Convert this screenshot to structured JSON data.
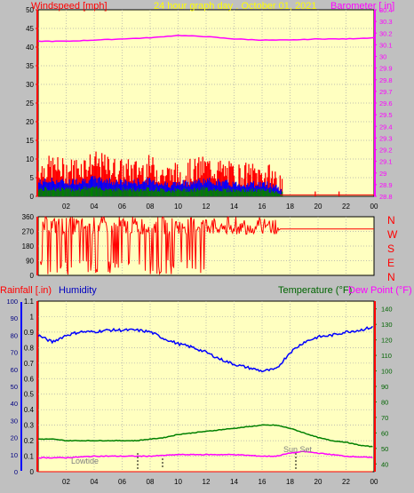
{
  "header": {
    "left_label": "Windspeed [mph]",
    "title": "24 hour graph day  . October 01, 2021",
    "right_label": "Barometer [ in]"
  },
  "colors": {
    "plot_bg": "#ffffc0",
    "panel_bg": "#c0c0c0",
    "axis_red": "#ff0000",
    "wind_gust": "#ff0000",
    "wind_avg": "#0000ff",
    "wind_low": "#008000",
    "barometer": "#ff00ff",
    "humidity": "#0000ff",
    "temperature": "#008000",
    "dew_point": "#ff00ff",
    "title_yellow": "#ffff00",
    "humidity_label": "#0000c0",
    "temp_label": "#006400",
    "dew_label": "#ff00ff",
    "annot": "#808080"
  },
  "chart_data": [
    {
      "type": "line",
      "id": "wind_baro",
      "xlabel": "",
      "x_ticks": [
        "02",
        "04",
        "06",
        "08",
        "10",
        "12",
        "14",
        "16",
        "18",
        "20",
        "22",
        "00"
      ],
      "ylim_left": [
        0,
        50
      ],
      "y_ticks_left": [
        "0",
        "5",
        "10",
        "15",
        "20",
        "25",
        "30",
        "35",
        "40",
        "45",
        "50"
      ],
      "ylim_right": [
        28.8,
        30.4
      ],
      "y_ticks_right": [
        "28.8",
        "28.9",
        "29",
        "29.1",
        "29.2",
        "29.3",
        "29.4",
        "29.5",
        "29.6",
        "29.7",
        "29.8",
        "29.9",
        "30",
        "30.1",
        "30.2",
        "30.3",
        "30.4"
      ],
      "grid": true,
      "series": [
        {
          "name": "Windspeed",
          "axis": "left",
          "x": [
            0,
            1,
            2,
            3,
            4,
            5,
            6,
            7,
            8,
            9,
            10,
            11,
            12,
            13,
            14,
            15,
            16,
            17,
            17.5,
            24
          ],
          "values": [
            6,
            7,
            6,
            7,
            8,
            7,
            6,
            6,
            7,
            5,
            5,
            6,
            7,
            6,
            5,
            5,
            5,
            4,
            0,
            0
          ]
        },
        {
          "name": "Barometer",
          "axis": "right",
          "x": [
            0,
            2,
            4,
            6,
            8,
            10,
            12,
            14,
            16,
            18,
            20,
            22,
            24
          ],
          "values": [
            30.13,
            30.13,
            30.14,
            30.15,
            30.16,
            30.18,
            30.17,
            30.15,
            30.14,
            30.14,
            30.15,
            30.15,
            30.16
          ]
        }
      ]
    },
    {
      "type": "scatter",
      "id": "wind_dir",
      "ylim": [
        0,
        360
      ],
      "y_ticks": [
        "0",
        "90",
        "180",
        "270",
        "360"
      ],
      "right_labels": [
        "N",
        "W",
        "S",
        "E",
        "N"
      ],
      "grid": true,
      "series": [
        {
          "name": "Wind Direction",
          "x": [
            0,
            2,
            4,
            6,
            8,
            10,
            12,
            14,
            16,
            17,
            17.5,
            24
          ],
          "values": [
            300,
            300,
            300,
            300,
            300,
            300,
            290,
            280,
            290,
            290,
            290,
            290
          ]
        }
      ]
    },
    {
      "type": "line",
      "id": "rain_hum_temp",
      "y_ticks_rain": [
        "0",
        "0.1",
        "0.2",
        "0.3",
        "0.4",
        "0.5",
        "0.6",
        "0.7",
        "0.8",
        "0.9",
        "1",
        "1.1"
      ],
      "ylim_rain": [
        0,
        1.1
      ],
      "y_ticks_humidity": [
        "0",
        "10",
        "20",
        "30",
        "40",
        "50",
        "60",
        "70",
        "80",
        "90",
        "100"
      ],
      "ylim_humidity": [
        0,
        100
      ],
      "y_ticks_temp": [
        "40",
        "50",
        "60",
        "70",
        "80",
        "90",
        "100",
        "110",
        "120",
        "130",
        "140"
      ],
      "ylim_temp": [
        35,
        145
      ],
      "x_ticks": [
        "02",
        "04",
        "06",
        "08",
        "10",
        "12",
        "14",
        "16",
        "18",
        "20",
        "22",
        "00"
      ],
      "grid": true,
      "series": [
        {
          "name": "Humidity",
          "axis": "humidity",
          "x": [
            0,
            1,
            2,
            3,
            4,
            5,
            6,
            7,
            8,
            9,
            10,
            11,
            12,
            13,
            14,
            15,
            16,
            17,
            18,
            19,
            20,
            21,
            22,
            23,
            24
          ],
          "values": [
            80,
            76,
            80,
            82,
            82,
            83,
            83,
            83,
            82,
            78,
            75,
            73,
            70,
            66,
            63,
            61,
            59,
            60,
            70,
            76,
            79,
            80,
            82,
            83,
            85
          ]
        },
        {
          "name": "Temperature",
          "axis": "temp",
          "x": [
            0,
            1,
            2,
            3,
            4,
            5,
            6,
            7,
            8,
            9,
            10,
            11,
            12,
            13,
            14,
            15,
            16,
            17,
            18,
            19,
            20,
            21,
            22,
            23,
            24
          ],
          "values": [
            56,
            56,
            55,
            55,
            55,
            55,
            55,
            55,
            56,
            57,
            59,
            60,
            61,
            62,
            63,
            64,
            65,
            65,
            63,
            60,
            57,
            55,
            54,
            52,
            51
          ]
        },
        {
          "name": "Dew Point",
          "axis": "temp",
          "x": [
            0,
            2,
            4,
            6,
            8,
            10,
            12,
            14,
            16,
            17,
            18,
            19,
            20,
            22,
            24
          ],
          "values": [
            44,
            44,
            45,
            45,
            45,
            46,
            46,
            46,
            45,
            45,
            47,
            48,
            47,
            45,
            44
          ]
        },
        {
          "name": "Rainfall",
          "axis": "rain",
          "x": [
            0,
            24
          ],
          "values": [
            0,
            0
          ]
        }
      ]
    }
  ],
  "labels3": {
    "rainfall": "Rainfall [.in)",
    "humidity": "Humidity",
    "temperature": "Temperature (°F)",
    "dew_point": "Dew Point (°F)"
  },
  "annotations": {
    "lowtide": "Lowtide",
    "sunset": "Sun Set"
  }
}
